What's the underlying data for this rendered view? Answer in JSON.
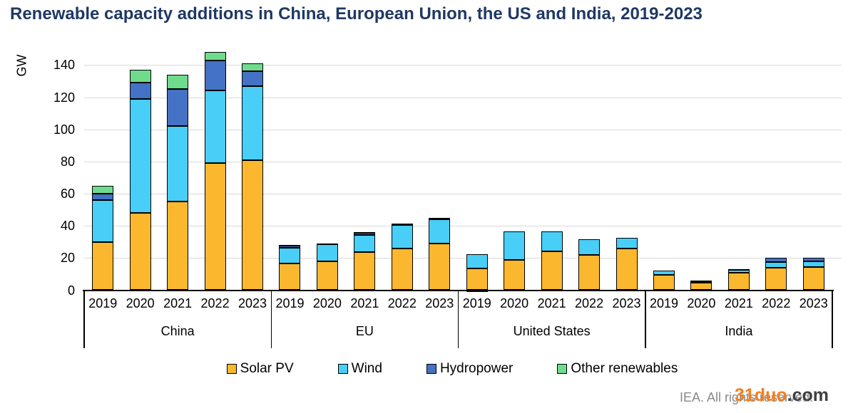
{
  "title": "Renewable capacity additions in China, European Union, the US and India, 2019-2023",
  "watermark": {
    "attribution": "IEA. All rights reserved.",
    "overlay_site": "31duo",
    "overlay_suffix": ".com"
  },
  "chart_data": {
    "type": "bar",
    "stacked": true,
    "title": "Renewable capacity additions in China, European Union, the US and India, 2019-2023",
    "ylabel": "GW",
    "xlabel": "",
    "ylim": [
      0,
      150
    ],
    "yticks": [
      0,
      20,
      40,
      60,
      80,
      100,
      120,
      140
    ],
    "grid": true,
    "legend_position": "bottom",
    "groups": [
      "China",
      "EU",
      "United States",
      "India"
    ],
    "years": [
      "2019",
      "2020",
      "2021",
      "2022",
      "2023"
    ],
    "series": [
      {
        "name": "Solar PV",
        "color": "#FBB82E",
        "values": [
          [
            30,
            48,
            55,
            79,
            81
          ],
          [
            16.5,
            18,
            23.5,
            26,
            29
          ],
          [
            13.5,
            19,
            24,
            22,
            26
          ],
          [
            9.5,
            4.5,
            11,
            14,
            14.5
          ]
        ]
      },
      {
        "name": "Wind",
        "color": "#48CEF7",
        "values": [
          [
            26,
            71,
            47,
            45,
            46
          ],
          [
            10,
            10.5,
            11,
            14.5,
            15
          ],
          [
            9,
            17.5,
            12.5,
            9.5,
            6.5
          ],
          [
            2.5,
            1,
            1.5,
            3.7,
            3.5
          ]
        ]
      },
      {
        "name": "Hydropower",
        "color": "#4472C4",
        "values": [
          [
            4,
            10,
            23,
            19,
            9
          ],
          [
            1,
            0.3,
            1,
            0.7,
            0.7
          ],
          [
            -1,
            0,
            0,
            0,
            0
          ],
          [
            0,
            0.5,
            0.5,
            2.3,
            2
          ]
        ]
      },
      {
        "name": "Other renewables",
        "color": "#6FDC8D",
        "values": [
          [
            5,
            8,
            9,
            5,
            5
          ],
          [
            0.5,
            0.2,
            0.5,
            0.3,
            0.3
          ],
          [
            0,
            0,
            0,
            0,
            0
          ],
          [
            0,
            0,
            0,
            0,
            0
          ]
        ]
      }
    ]
  }
}
